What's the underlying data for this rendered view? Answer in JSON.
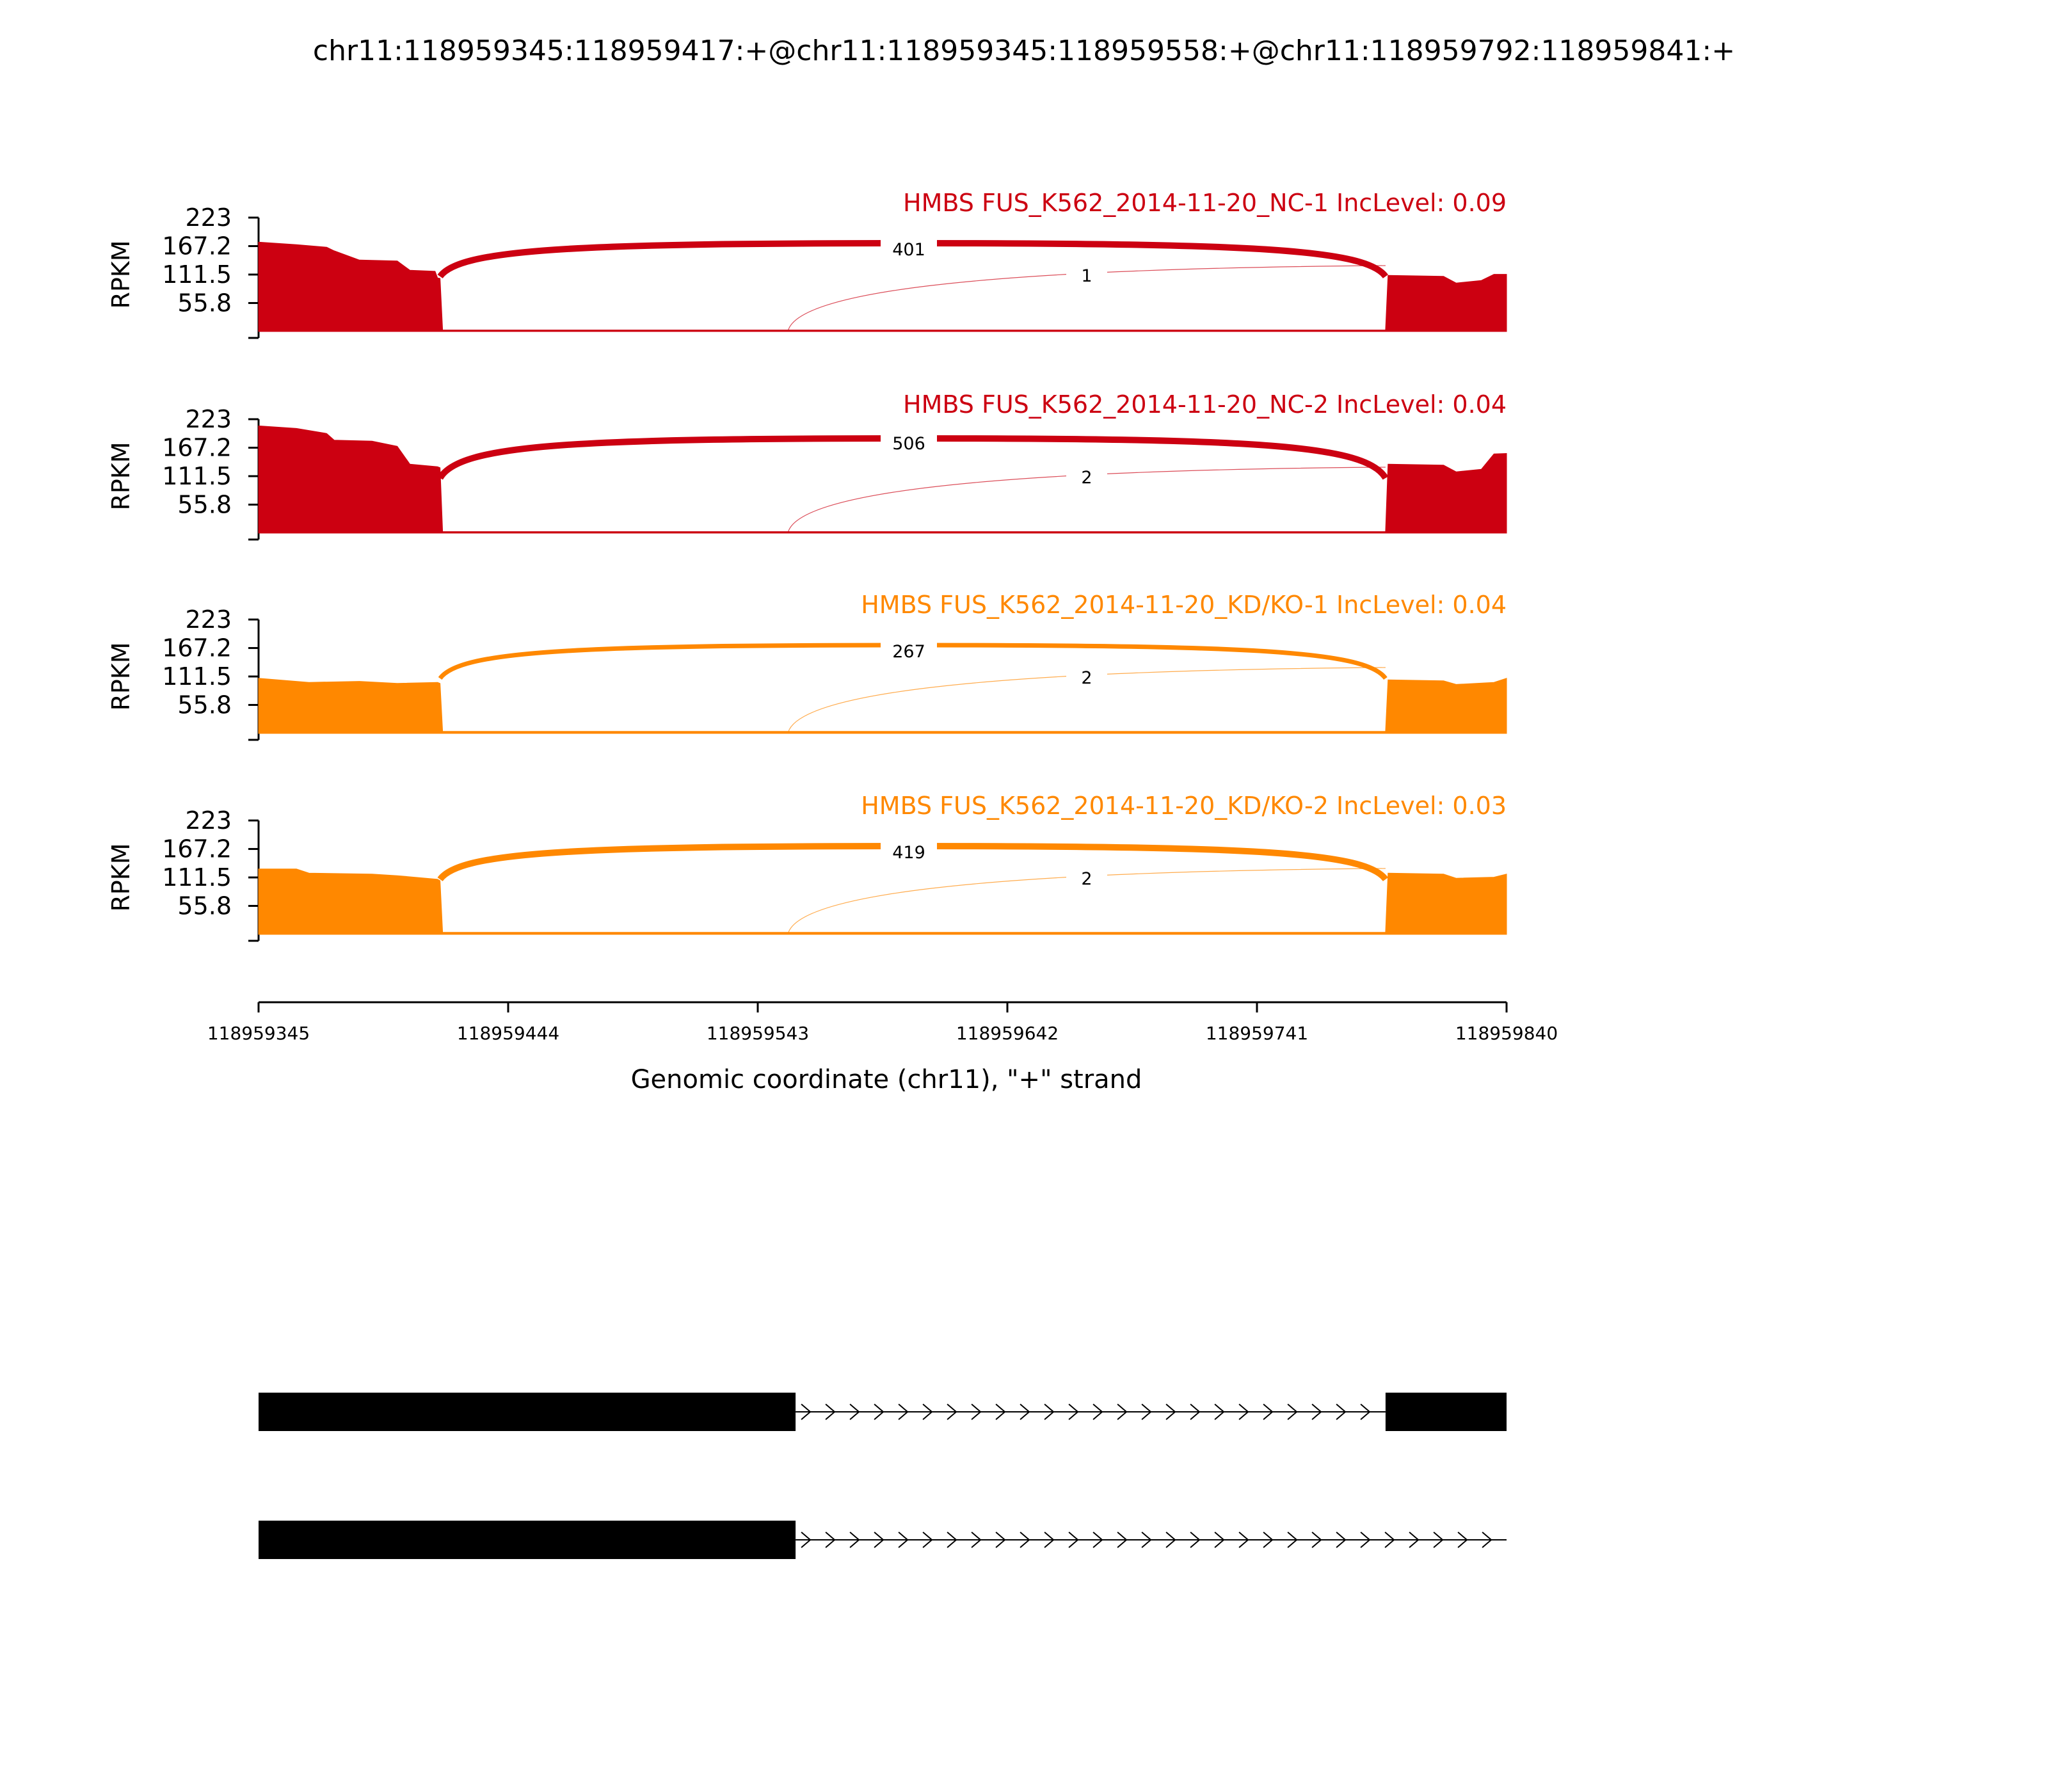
{
  "chart_data": {
    "type": "area",
    "title": "chr11:118959345:118959417:+@chr11:118959345:118959558:+@chr11:118959792:118959841:+",
    "xlabel": "Genomic coordinate (chr11), \"+\" strand",
    "ylabel": "RPKM",
    "xlim": [
      118959345,
      118959840
    ],
    "x_ticks": [
      "118959345",
      "118959444",
      "118959543",
      "118959642",
      "118959741",
      "118959840"
    ],
    "ylim": [
      0,
      223
    ],
    "y_ticks": [
      "223",
      "167.2",
      "111.5",
      "55.8"
    ],
    "series": [
      {
        "name": "HMBS FUS_K562_2014-11-20_NC-1 IncLevel: 0.09",
        "color": "#CC0011",
        "coverage": [
          {
            "x": 118959345,
            "y": 175
          },
          {
            "x": 118959360,
            "y": 170
          },
          {
            "x": 118959372,
            "y": 165
          },
          {
            "x": 118959375,
            "y": 158
          },
          {
            "x": 118959385,
            "y": 140
          },
          {
            "x": 118959400,
            "y": 138
          },
          {
            "x": 118959405,
            "y": 120
          },
          {
            "x": 118959415,
            "y": 118
          },
          {
            "x": 118959416,
            "y": 105
          },
          {
            "x": 118959417,
            "y": 104
          },
          {
            "x": 118959418,
            "y": 3
          },
          {
            "x": 118959792,
            "y": 3
          },
          {
            "x": 118959793,
            "y": 110
          },
          {
            "x": 118959815,
            "y": 108
          },
          {
            "x": 118959820,
            "y": 95
          },
          {
            "x": 118959830,
            "y": 100
          },
          {
            "x": 118959835,
            "y": 112
          },
          {
            "x": 118959840,
            "y": 112
          }
        ],
        "junctions": [
          {
            "start": 118959417,
            "end": 118959792,
            "count": "401"
          },
          {
            "start": 118959558,
            "end": 118959792,
            "count": "1"
          }
        ]
      },
      {
        "name": "HMBS FUS_K562_2014-11-20_NC-2 IncLevel: 0.04",
        "color": "#CC0011",
        "coverage": [
          {
            "x": 118959345,
            "y": 210
          },
          {
            "x": 118959360,
            "y": 205
          },
          {
            "x": 118959372,
            "y": 195
          },
          {
            "x": 118959375,
            "y": 182
          },
          {
            "x": 118959390,
            "y": 180
          },
          {
            "x": 118959400,
            "y": 170
          },
          {
            "x": 118959405,
            "y": 135
          },
          {
            "x": 118959416,
            "y": 130
          },
          {
            "x": 118959417,
            "y": 128
          },
          {
            "x": 118959418,
            "y": 3
          },
          {
            "x": 118959792,
            "y": 3
          },
          {
            "x": 118959793,
            "y": 135
          },
          {
            "x": 118959815,
            "y": 133
          },
          {
            "x": 118959820,
            "y": 120
          },
          {
            "x": 118959830,
            "y": 125
          },
          {
            "x": 118959835,
            "y": 155
          },
          {
            "x": 118959840,
            "y": 156
          }
        ],
        "junctions": [
          {
            "start": 118959417,
            "end": 118959792,
            "count": "506"
          },
          {
            "start": 118959558,
            "end": 118959792,
            "count": "2"
          }
        ]
      },
      {
        "name": "HMBS FUS_K562_2014-11-20_KD/KO-1 IncLevel: 0.04",
        "color": "#FF8800",
        "coverage": [
          {
            "x": 118959345,
            "y": 108
          },
          {
            "x": 118959365,
            "y": 100
          },
          {
            "x": 118959385,
            "y": 102
          },
          {
            "x": 118959400,
            "y": 98
          },
          {
            "x": 118959416,
            "y": 100
          },
          {
            "x": 118959417,
            "y": 98
          },
          {
            "x": 118959418,
            "y": 4
          },
          {
            "x": 118959792,
            "y": 4
          },
          {
            "x": 118959793,
            "y": 105
          },
          {
            "x": 118959815,
            "y": 103
          },
          {
            "x": 118959820,
            "y": 96
          },
          {
            "x": 118959835,
            "y": 100
          },
          {
            "x": 118959840,
            "y": 108
          }
        ],
        "junctions": [
          {
            "start": 118959417,
            "end": 118959792,
            "count": "267"
          },
          {
            "start": 118959558,
            "end": 118959792,
            "count": "2"
          }
        ]
      },
      {
        "name": "HMBS FUS_K562_2014-11-20_KD/KO-2 IncLevel: 0.03",
        "color": "#FF8800",
        "coverage": [
          {
            "x": 118959345,
            "y": 128
          },
          {
            "x": 118959360,
            "y": 128
          },
          {
            "x": 118959365,
            "y": 120
          },
          {
            "x": 118959390,
            "y": 118
          },
          {
            "x": 118959400,
            "y": 115
          },
          {
            "x": 118959416,
            "y": 108
          },
          {
            "x": 118959417,
            "y": 105
          },
          {
            "x": 118959418,
            "y": 4
          },
          {
            "x": 118959792,
            "y": 4
          },
          {
            "x": 118959793,
            "y": 120
          },
          {
            "x": 118959815,
            "y": 118
          },
          {
            "x": 118959820,
            "y": 110
          },
          {
            "x": 118959835,
            "y": 112
          },
          {
            "x": 118959840,
            "y": 118
          }
        ],
        "junctions": [
          {
            "start": 118959417,
            "end": 118959792,
            "count": "419"
          },
          {
            "start": 118959558,
            "end": 118959792,
            "count": "2"
          }
        ]
      }
    ],
    "isoforms": [
      {
        "exons": [
          [
            118959345,
            118959558
          ],
          [
            118959792,
            118959841
          ]
        ],
        "intron": [
          118959558,
          118959792
        ]
      },
      {
        "exons": [
          [
            118959345,
            118959558
          ]
        ],
        "intron": [
          118959558,
          118959841
        ]
      }
    ],
    "grid": false
  }
}
